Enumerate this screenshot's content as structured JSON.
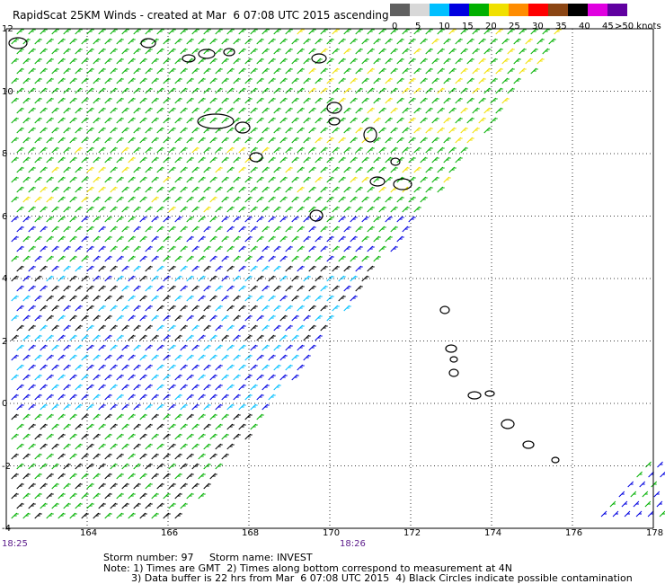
{
  "title": "RapidScat 25KM Winds - created at Mar  6 07:08 UTC 2015 ascending",
  "legend": {
    "ticks": [
      "0",
      "5",
      "10",
      "15",
      "20",
      "25",
      "30",
      "35",
      "40",
      "45"
    ],
    "unit": ">50 knots",
    "colors": [
      "#606060",
      "#d8d8d8",
      "#00bfff",
      "#0000e0",
      "#00b000",
      "#f0e000",
      "#ff8c00",
      "#ff0000",
      "#8b4513",
      "#000000",
      "#e000e0",
      "#6000a0"
    ]
  },
  "axes": {
    "lon_labels": [
      "164",
      "166",
      "168",
      "170",
      "172",
      "174",
      "176",
      "178"
    ],
    "lat_labels": [
      "12",
      "10",
      "8",
      "6",
      "4",
      "2",
      "0",
      "-2",
      "-4"
    ]
  },
  "times": {
    "left": "18:25",
    "mid": "18:26"
  },
  "footer": {
    "line1": "Storm number: 97     Storm name: INVEST",
    "line2": "Note: 1) Times are GMT  2) Times along bottom correspond to measurement at 4N",
    "line3": "3) Data buffer is 22 hrs from Mar  6 07:08 UTC 2015  4) Black Circles indicate possible contamination"
  }
}
